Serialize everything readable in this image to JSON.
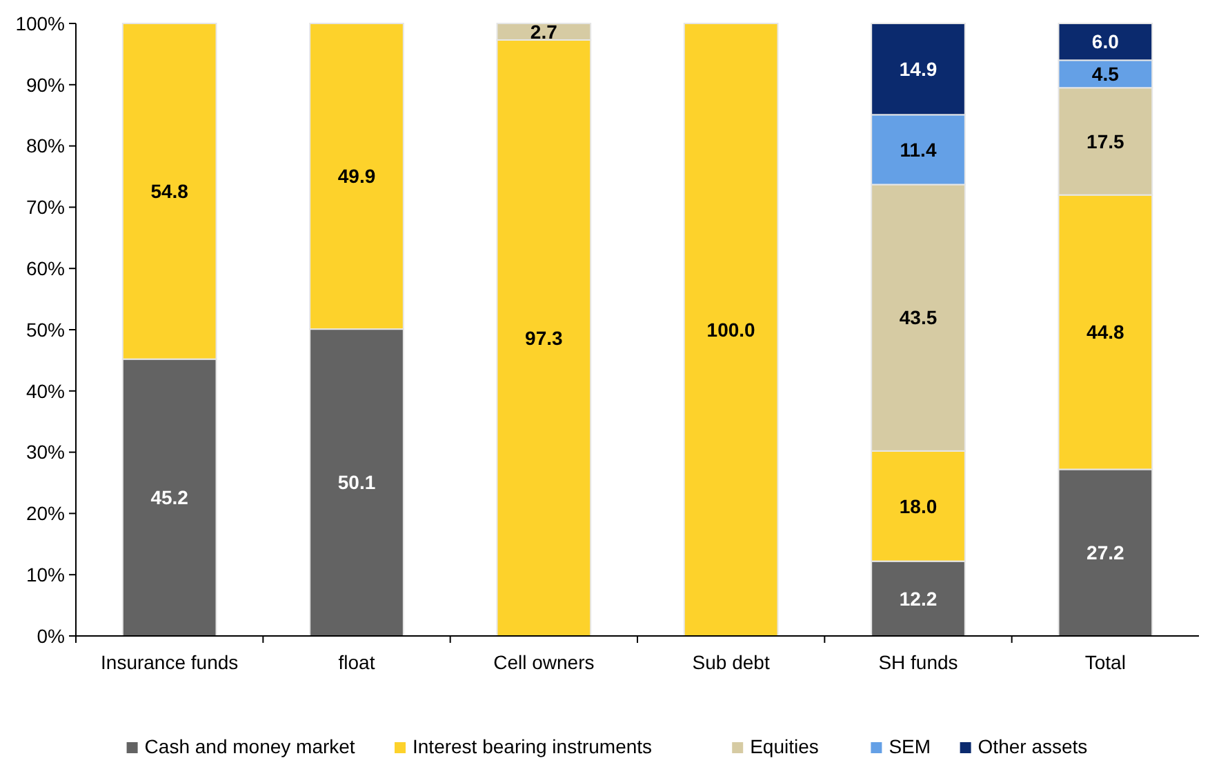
{
  "chart_data": {
    "type": "bar",
    "stacked": true,
    "categories": [
      "Insurance funds",
      "float",
      "Cell owners",
      "Sub debt",
      "SH funds",
      "Total"
    ],
    "series": [
      {
        "name": "Cash and money market",
        "color": "#636363",
        "values": [
          45.2,
          50.1,
          null,
          null,
          12.2,
          27.2
        ],
        "value_labels": [
          "45.2",
          "50.1",
          null,
          null,
          "12.2",
          "27.2"
        ]
      },
      {
        "name": "Interest bearing instruments",
        "color": "#fdd22b",
        "values": [
          54.8,
          49.9,
          97.3,
          100,
          18,
          44.8
        ],
        "value_labels": [
          "54.8",
          "49.9",
          "97.3",
          "100.0",
          "18.0",
          "44.8"
        ]
      },
      {
        "name": "Equities",
        "color": "#d6cba3",
        "values": [
          null,
          null,
          2.7,
          null,
          43.5,
          17.5
        ],
        "value_labels": [
          null,
          null,
          "2.7",
          null,
          "43.5",
          "17.5"
        ]
      },
      {
        "name": "SEM",
        "color": "#64a0e6",
        "values": [
          null,
          null,
          null,
          null,
          11.4,
          4.5
        ],
        "value_labels": [
          null,
          null,
          null,
          null,
          "11.4",
          "4.5"
        ]
      },
      {
        "name": "Other assets",
        "color": "#0b2a6e",
        "values": [
          null,
          null,
          null,
          null,
          14.9,
          6
        ],
        "value_labels": [
          null,
          null,
          null,
          null,
          "14.9",
          "6.0"
        ]
      }
    ],
    "ylim": [
      0,
      100
    ],
    "yticks": [
      {
        "value": 0,
        "label": "0%"
      },
      {
        "value": 10,
        "label": "10%"
      },
      {
        "value": 20,
        "label": "20%"
      },
      {
        "value": 30,
        "label": "30%"
      },
      {
        "value": 40,
        "label": "40%"
      },
      {
        "value": 50,
        "label": "50%"
      },
      {
        "value": 60,
        "label": "60%"
      },
      {
        "value": 70,
        "label": "70%"
      },
      {
        "value": 80,
        "label": "80%"
      },
      {
        "value": 90,
        "label": "90%"
      },
      {
        "value": 100,
        "label": "100%"
      }
    ],
    "legend": "bottom",
    "grid": false
  }
}
